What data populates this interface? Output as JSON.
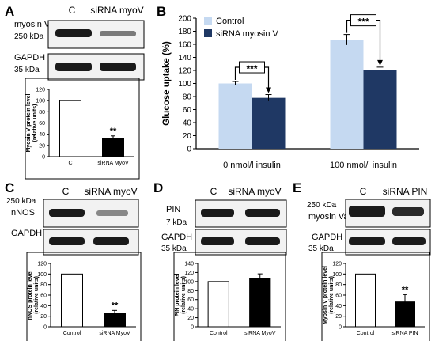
{
  "colors": {
    "control_fill": "#c5d9f1",
    "treated_fill": "#1f3864",
    "bar_black": "#000000",
    "bar_white": "#ffffff",
    "blot_bg": "#f2f2f2",
    "band": "#1a1a1a"
  },
  "panels": {
    "A": {
      "letter": "A",
      "lane_labels": [
        "C",
        "siRNA myoV"
      ],
      "blots": [
        {
          "protein": "myosin V",
          "kda": "250 kDa"
        },
        {
          "protein": "GAPDH",
          "kda": "35 kDa"
        }
      ]
    },
    "B": {
      "letter": "B"
    },
    "C": {
      "letter": "C",
      "lane_labels": [
        "C",
        "siRNA myoV"
      ],
      "blots": [
        {
          "protein": "nNOS",
          "kda": "250 kDa"
        },
        {
          "protein": "GAPDH",
          "kda": "35 kDa"
        }
      ]
    },
    "D": {
      "letter": "D",
      "lane_labels": [
        "C",
        "siRNA myoV"
      ],
      "blots": [
        {
          "protein": "PIN",
          "kda": "7 kDa"
        },
        {
          "protein": "GAPDH",
          "kda": "35 kDa"
        }
      ]
    },
    "E": {
      "letter": "E",
      "lane_labels": [
        "C",
        "siRNA PIN"
      ],
      "blots": [
        {
          "protein": "myosin Va",
          "kda": "250 kDa"
        },
        {
          "protein": "GAPDH",
          "kda": "35 kDa"
        }
      ]
    }
  },
  "chart_data": [
    {
      "panel": "A",
      "type": "bar",
      "categories": [
        "C",
        "siRNA MyoV"
      ],
      "values": [
        100,
        32
      ],
      "errors": [
        0,
        5
      ],
      "ylabel": "Myosin V protein level (relative units)",
      "ylim": [
        0,
        120
      ],
      "yticks": [
        0,
        20,
        40,
        60,
        80,
        100,
        120
      ],
      "annotations": [
        {
          "category": "siRNA MyoV",
          "text": "**"
        }
      ]
    },
    {
      "panel": "B",
      "type": "bar",
      "categories": [
        "0 nmol/l insulin",
        "100 nmol/l insulin"
      ],
      "series": [
        {
          "name": "Control",
          "values": [
            100,
            167
          ],
          "errors": [
            3,
            8
          ]
        },
        {
          "name": "siRNA myosin V",
          "values": [
            78,
            120
          ],
          "errors": [
            5,
            5
          ]
        }
      ],
      "ylabel": "Glucose uptake (%)",
      "ylim": [
        0,
        200
      ],
      "yticks": [
        0,
        20,
        40,
        60,
        80,
        100,
        120,
        140,
        160,
        180,
        200
      ],
      "legend": "top-left",
      "annotations": [
        {
          "category": "0 nmol/l insulin",
          "text": "***"
        },
        {
          "category": "100 nmol/l insulin",
          "text": "***"
        }
      ]
    },
    {
      "panel": "C",
      "type": "bar",
      "categories": [
        "Control",
        "siRNA MyoV"
      ],
      "values": [
        100,
        26
      ],
      "errors": [
        0,
        5
      ],
      "ylabel": "nNOS protein level (relative units)",
      "ylim": [
        0,
        120
      ],
      "yticks": [
        0,
        20,
        40,
        60,
        80,
        100,
        120
      ],
      "annotations": [
        {
          "category": "siRNA MyoV",
          "text": "**"
        }
      ]
    },
    {
      "panel": "D",
      "type": "bar",
      "categories": [
        "Control",
        "siRNA MyoV"
      ],
      "values": [
        100,
        107
      ],
      "errors": [
        0,
        10
      ],
      "ylabel": "PIN protein level (relative units)",
      "ylim": [
        0,
        140
      ],
      "yticks": [
        0,
        20,
        40,
        60,
        80,
        100,
        120,
        140
      ],
      "annotations": []
    },
    {
      "panel": "E",
      "type": "bar",
      "categories": [
        "Control",
        "siRNA PIN"
      ],
      "values": [
        100,
        47
      ],
      "errors": [
        0,
        14
      ],
      "ylabel": "Myosin V protein level (relative units)",
      "ylim": [
        0,
        120
      ],
      "yticks": [
        0,
        20,
        40,
        60,
        80,
        100,
        120
      ],
      "annotations": [
        {
          "category": "siRNA PIN",
          "text": "**"
        }
      ]
    }
  ]
}
